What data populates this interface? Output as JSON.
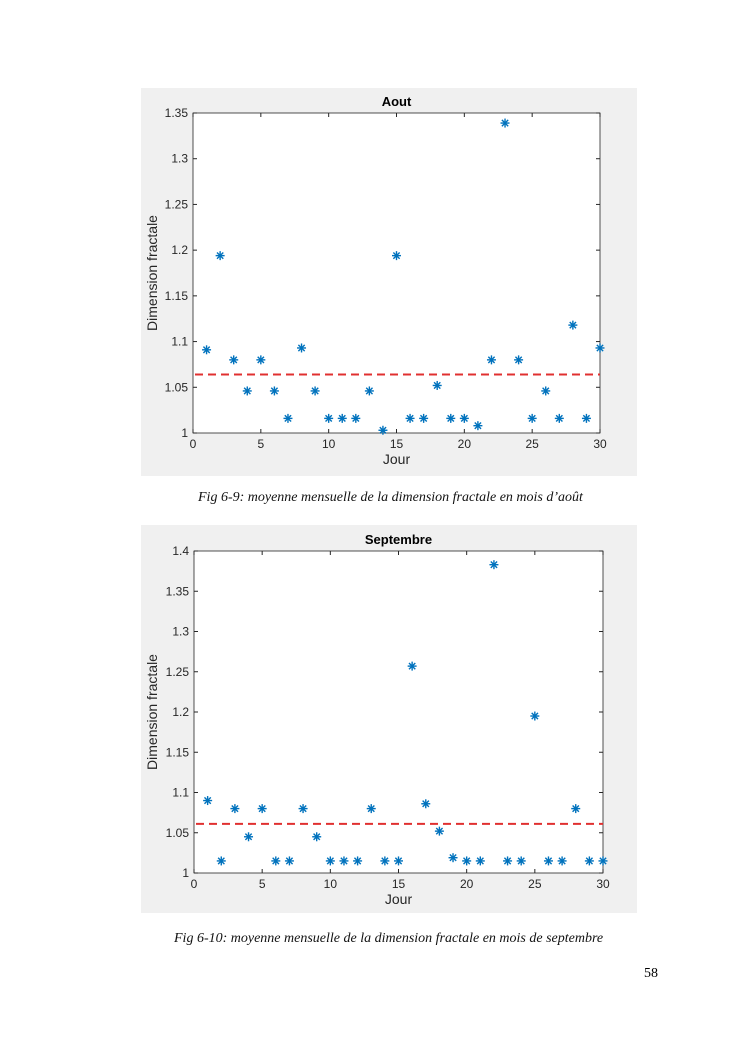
{
  "chart_data": [
    {
      "type": "scatter",
      "title": "Aout",
      "xlabel": "Jour",
      "ylabel": "Dimension fractale",
      "xlim": [
        0,
        30
      ],
      "ylim": [
        1,
        1.35
      ],
      "xticks": [
        "0",
        "5",
        "10",
        "15",
        "20",
        "25",
        "30"
      ],
      "yticks": [
        "1",
        "1.05",
        "1.1",
        "1.15",
        "1.2",
        "1.25",
        "1.3",
        "1.35"
      ],
      "x": [
        1,
        2,
        3,
        4,
        5,
        6,
        7,
        8,
        9,
        10,
        11,
        12,
        13,
        14,
        15,
        16,
        17,
        18,
        19,
        20,
        21,
        22,
        23,
        24,
        25,
        26,
        27,
        28,
        29,
        30
      ],
      "y": [
        1.091,
        1.194,
        1.08,
        1.046,
        1.08,
        1.046,
        1.016,
        1.093,
        1.046,
        1.016,
        1.016,
        1.016,
        1.046,
        1.003,
        1.194,
        1.016,
        1.016,
        1.052,
        1.016,
        1.016,
        1.008,
        1.08,
        1.339,
        1.08,
        1.016,
        1.046,
        1.016,
        1.118,
        1.016,
        1.093
      ],
      "mean_line": 1.064,
      "marker_color": "#0072bd",
      "mean_color": "#e03030"
    },
    {
      "type": "scatter",
      "title": "Septembre",
      "xlabel": "Jour",
      "ylabel": "Dimension fractale",
      "xlim": [
        0,
        30
      ],
      "ylim": [
        1,
        1.4
      ],
      "xticks": [
        "0",
        "5",
        "10",
        "15",
        "20",
        "25",
        "30"
      ],
      "yticks": [
        "1",
        "1.05",
        "1.1",
        "1.15",
        "1.2",
        "1.25",
        "1.3",
        "1.35",
        "1.4"
      ],
      "x": [
        1,
        2,
        3,
        4,
        5,
        6,
        7,
        8,
        9,
        10,
        11,
        12,
        13,
        14,
        15,
        16,
        17,
        18,
        19,
        20,
        21,
        22,
        23,
        24,
        25,
        26,
        27,
        28,
        29,
        30
      ],
      "y": [
        1.09,
        1.015,
        1.08,
        1.045,
        1.08,
        1.015,
        1.015,
        1.08,
        1.045,
        1.015,
        1.015,
        1.015,
        1.08,
        1.015,
        1.015,
        1.257,
        1.086,
        1.052,
        1.019,
        1.015,
        1.015,
        1.383,
        1.015,
        1.015,
        1.195,
        1.015,
        1.015,
        1.08,
        1.015,
        1.015
      ],
      "mean_line": 1.061,
      "marker_color": "#0072bd",
      "mean_color": "#e03030"
    }
  ],
  "captions": [
    "Fig 6-9: moyenne mensuelle de la dimension fractale en mois d’août",
    "Fig 6-10: moyenne mensuelle de la dimension fractale en mois de septembre"
  ],
  "page_number": "58"
}
